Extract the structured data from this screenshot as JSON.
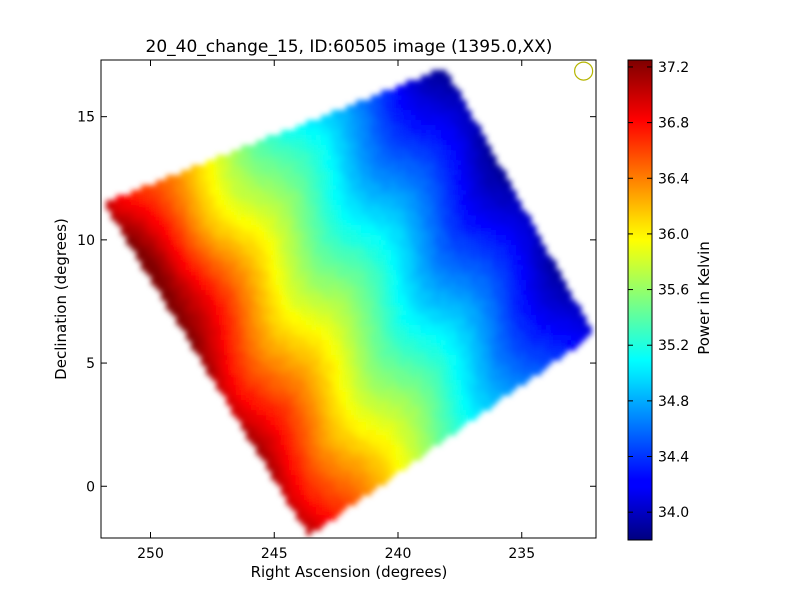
{
  "chart_data": {
    "type": "heatmap",
    "title": "20_40_change_15, ID:60505 image (1395.0,XX)",
    "xlabel": "Right Ascension (degrees)",
    "ylabel": "Declination (degrees)",
    "colorbar_label": "Power in Kelvin",
    "xlim": [
      252,
      232
    ],
    "ylim": [
      -2.1,
      17.3
    ],
    "x_inverted": true,
    "grid": false,
    "colormap": "jet",
    "x_ticks": [
      250,
      245,
      240,
      235
    ],
    "y_ticks": [
      0,
      5,
      10,
      15
    ],
    "colorbar_range": [
      33.8,
      37.25
    ],
    "colorbar_ticks": [
      "34.0",
      "34.4",
      "34.8",
      "35.2",
      "35.6",
      "36.0",
      "36.4",
      "36.8",
      "37.2"
    ],
    "footprint_corners_radec": [
      [
        251.9,
        11.5
      ],
      [
        238.1,
        17.0
      ],
      [
        232.1,
        6.2
      ],
      [
        243.6,
        -2.0
      ]
    ],
    "value_field": {
      "description_units": "Kelvin",
      "west_edge_value": 37.1,
      "east_edge_value": 33.9,
      "peak_location": [
        249.5,
        8.0
      ],
      "peak_value": 37.1
    },
    "annotation_marker": {
      "shape": "circle",
      "center": [
        232.5,
        16.85
      ],
      "color": "#b5b500"
    }
  }
}
